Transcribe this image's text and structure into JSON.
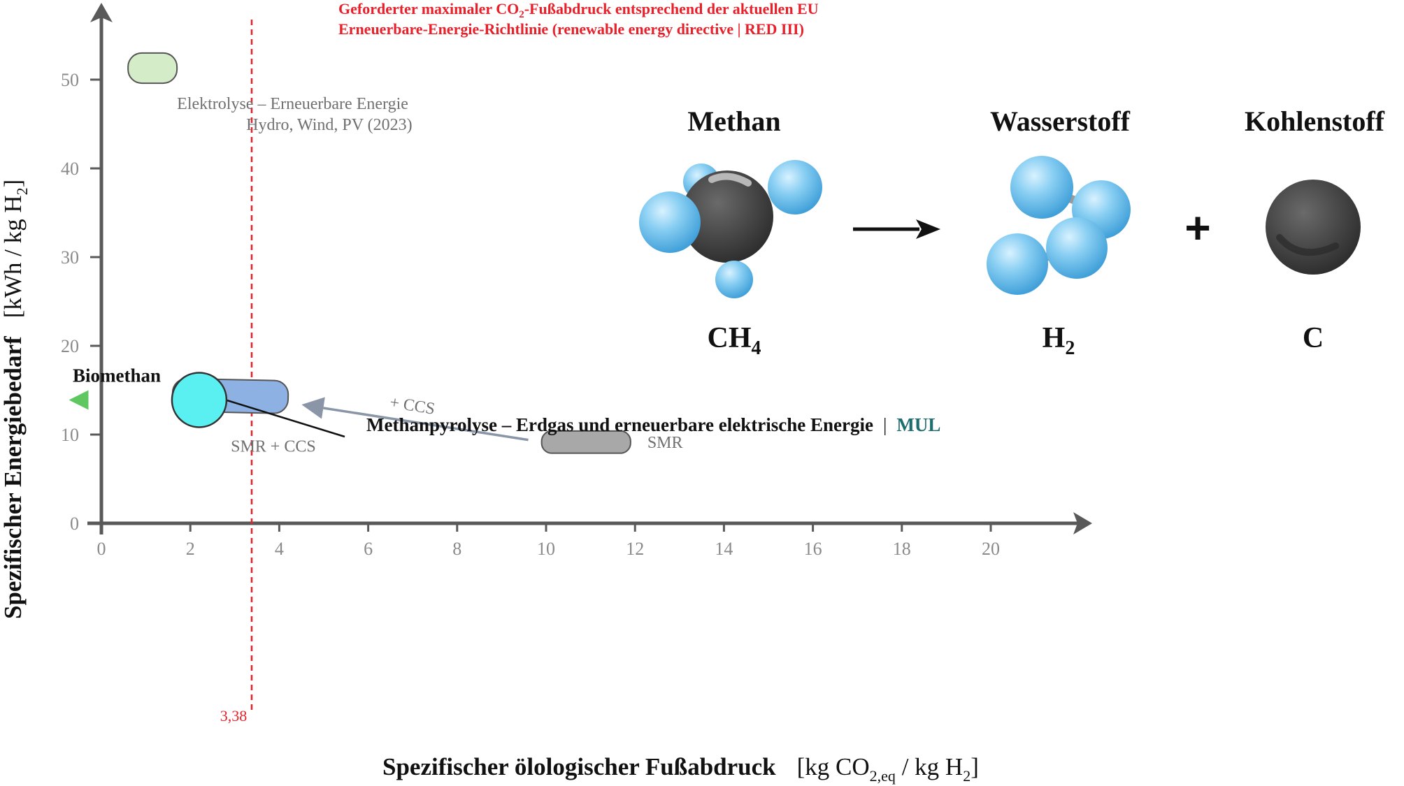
{
  "chart_data": {
    "type": "scatter",
    "xlabel": "Spezifischer ölologischer Fußabdruck",
    "xunit_prefix": "[kg CO",
    "xunit_sub": "2,eq",
    "xunit_mid": " / kg H",
    "xunit_sub2": "2",
    "xunit_suffix": "]",
    "ylabel": "Spezifischer Energiebedarf",
    "yunit_prefix": "[kWh / kg H",
    "yunit_sub": "2",
    "yunit_suffix": "]",
    "xlim": [
      0,
      22
    ],
    "ylim": [
      0,
      57
    ],
    "x_ticks": [
      0,
      2,
      4,
      6,
      8,
      10,
      12,
      14,
      16,
      18,
      20
    ],
    "y_ticks": [
      0,
      10,
      20,
      30,
      40,
      50
    ],
    "grid": false,
    "threshold": {
      "x": 3.38,
      "tick_label": "3,38",
      "label_line1_a": "Geforderter maximaler CO",
      "label_line1_sub": "2",
      "label_line1_b": "-Fußabdruck entsprechend der aktuellen EU",
      "label_line2": "Erneuerbare-Energie-Richtlinie (renewable energy directive | RED III)",
      "color": "#e8202a"
    },
    "regions": [
      {
        "name": "elektrolyse",
        "x": [
          0.6,
          1.7
        ],
        "y": [
          49.6,
          53.0
        ],
        "label_line1": "Elektrolyse – Erneuerbare Energie",
        "label_line2": "Hydro, Wind, PV (2023)",
        "fill": "#d5ecc8",
        "stroke": "#555555"
      },
      {
        "name": "smr-ccs",
        "x": [
          1.6,
          4.2
        ],
        "y": [
          12.5,
          16.2
        ],
        "label": "SMR + CCS",
        "fill": "#8db1e3",
        "stroke": "#555555"
      },
      {
        "name": "smr",
        "x": [
          9.9,
          11.9
        ],
        "y": [
          7.9,
          10.4
        ],
        "label": "SMR",
        "fill": "#a8a8a8",
        "stroke": "#555555"
      }
    ],
    "points": [
      {
        "name": "methanpyrolyse",
        "x": 2.2,
        "y": 13.9,
        "label_main": "Methanpyrolyse – Erdgas und erneuerbare elektrische Energie",
        "label_sep": "|",
        "label_tag": "MUL",
        "fill": "#5af0f2",
        "stroke": "#333333",
        "tag_color": "#1d6e70"
      }
    ],
    "annotations": [
      {
        "name": "ccs-arrow",
        "from": [
          9.6,
          9.4
        ],
        "to": [
          4.6,
          13.3
        ],
        "label": "+ CCS",
        "color": "#8a96a8"
      },
      {
        "name": "biomethan-arrow",
        "from": [
          1.6,
          13.9
        ],
        "to": [
          -0.8,
          13.9
        ],
        "label": "Biomethan",
        "color_start": "#5ad8d8",
        "color_end": "#5fc75f"
      }
    ]
  },
  "reaction": {
    "reactant_name": "Methan",
    "reactant_formula": "CH",
    "reactant_formula_sub": "4",
    "product1_name": "Wasserstoff",
    "product1_formula": "H",
    "product1_formula_sub": "2",
    "plus": "+",
    "product2_name": "Kohlenstoff",
    "product2_formula": "C",
    "atom_colors": {
      "hydrogen": "#7fc8ef",
      "carbon": "#4a4a4a",
      "bond": "#9a9a9a"
    }
  }
}
